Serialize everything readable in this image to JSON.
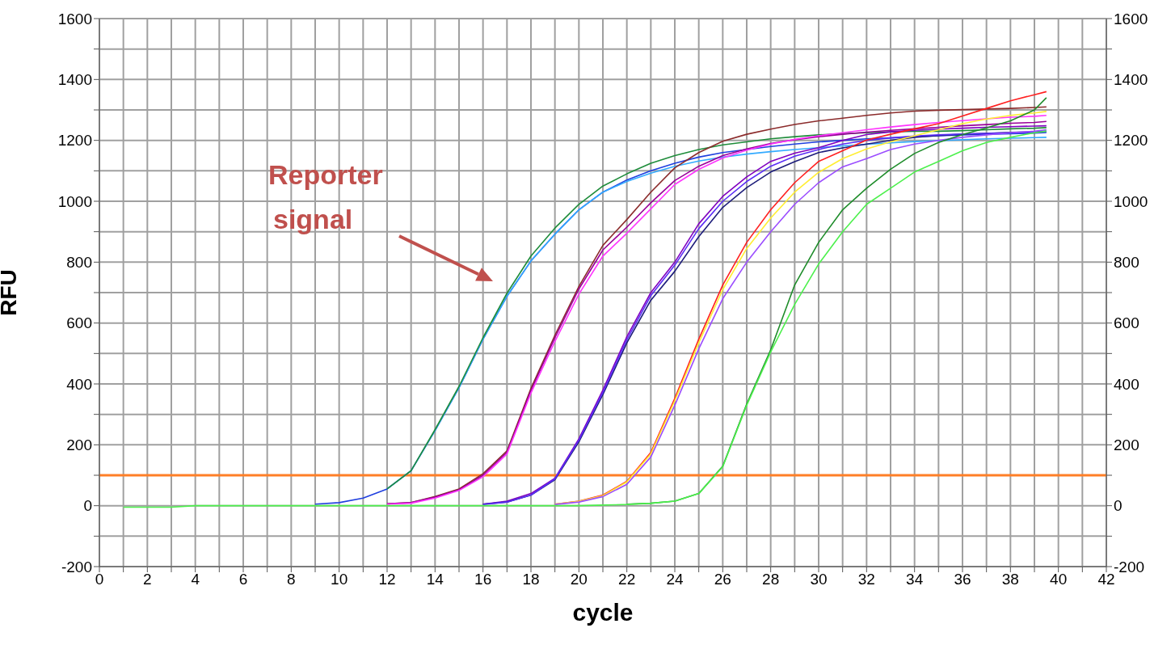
{
  "chart_data": {
    "type": "line",
    "xlabel": "cycle",
    "ylabel": "RFU",
    "grid": true,
    "legend": false,
    "x": [
      1,
      2,
      3,
      4,
      5,
      6,
      7,
      8,
      9,
      10,
      11,
      12,
      13,
      14,
      15,
      16,
      17,
      18,
      19,
      20,
      21,
      22,
      23,
      24,
      25,
      26,
      27,
      28,
      29,
      30,
      31,
      32,
      33,
      34,
      35,
      36,
      37,
      38,
      39,
      39.5
    ],
    "xlim": [
      0,
      42
    ],
    "xticks": [
      0,
      {
        "value": 1,
        "label": null
      },
      2,
      {
        "value": 3,
        "label": null
      },
      4,
      {
        "value": 5,
        "label": null
      },
      6,
      {
        "value": 7,
        "label": null
      },
      8,
      {
        "value": 9,
        "label": null
      },
      10,
      {
        "value": 11,
        "label": null
      },
      12,
      {
        "value": 13,
        "label": null
      },
      14,
      {
        "value": 15,
        "label": null
      },
      16,
      {
        "value": 17,
        "label": null
      },
      18,
      {
        "value": 19,
        "label": null
      },
      20,
      {
        "value": 21,
        "label": null
      },
      22,
      {
        "value": 23,
        "label": null
      },
      24,
      {
        "value": 25,
        "label": null
      },
      26,
      {
        "value": 27,
        "label": null
      },
      28,
      {
        "value": 29,
        "label": null
      },
      30,
      {
        "value": 31,
        "label": null
      },
      32,
      {
        "value": 33,
        "label": null
      },
      34,
      {
        "value": 35,
        "label": null
      },
      36,
      {
        "value": 37,
        "label": null
      },
      38,
      {
        "value": 39,
        "label": null
      },
      40,
      {
        "value": 41,
        "label": null
      },
      42
    ],
    "ylim": [
      -200,
      1600
    ],
    "yticks": [
      -200,
      {
        "value": -100,
        "label": null
      },
      0,
      {
        "value": 100,
        "label": null
      },
      200,
      {
        "value": 300,
        "label": null
      },
      400,
      {
        "value": 500,
        "label": null
      },
      600,
      {
        "value": 700,
        "label": null
      },
      800,
      {
        "value": 900,
        "label": null
      },
      1000,
      {
        "value": 1100,
        "label": null
      },
      1200,
      {
        "value": 1300,
        "label": null
      },
      1400,
      {
        "value": 1500,
        "label": null
      },
      1600
    ],
    "y2lim": [
      -200,
      1600
    ],
    "y2ticks": [
      -200,
      {
        "value": -100,
        "label": null
      },
      0,
      {
        "value": 100,
        "label": null
      },
      200,
      {
        "value": 300,
        "label": null
      },
      400,
      {
        "value": 500,
        "label": null
      },
      600,
      {
        "value": 700,
        "label": null
      },
      800,
      {
        "value": 900,
        "label": null
      },
      1000,
      {
        "value": 1100,
        "label": null
      },
      1200,
      {
        "value": 1300,
        "label": null
      },
      1400,
      {
        "value": 1500,
        "label": null
      },
      1600
    ],
    "ref_lines": [
      {
        "axis": "y",
        "value": 100,
        "color": "#ff7f27"
      }
    ],
    "annotations": [
      "Reporter signal"
    ],
    "series": [
      {
        "color": "#1f3fdf",
        "values": [
          null,
          null,
          null,
          null,
          null,
          null,
          null,
          null,
          5,
          10,
          25,
          55,
          115,
          247,
          388,
          547,
          688,
          804,
          892,
          972,
          1030,
          1070,
          1100,
          1125,
          1145,
          1160,
          1170,
          1180,
          1188,
          1195,
          1200,
          1205,
          1208,
          1212,
          1215,
          1218,
          1220,
          1222,
          1224,
          1226
        ]
      },
      {
        "color": "#33aaff",
        "values": [
          null,
          null,
          null,
          null,
          null,
          null,
          null,
          null,
          null,
          null,
          null,
          55,
          115,
          247,
          388,
          547,
          688,
          804,
          892,
          972,
          1030,
          1065,
          1092,
          1115,
          1132,
          1145,
          1155,
          1163,
          1170,
          1176,
          1182,
          1187,
          1192,
          1196,
          1199,
          1202,
          1205,
          1207,
          1209,
          1210
        ]
      },
      {
        "color": "#1e8c3a",
        "values": [
          null,
          null,
          null,
          null,
          null,
          null,
          null,
          null,
          null,
          null,
          null,
          55,
          115,
          250,
          392,
          552,
          698,
          820,
          912,
          990,
          1050,
          1090,
          1125,
          1150,
          1170,
          1185,
          1195,
          1205,
          1212,
          1218,
          1222,
          1225,
          1228,
          1230,
          1230,
          1232,
          1235,
          1238,
          1240,
          1242
        ]
      },
      {
        "color": "#8b2b2b",
        "values": [
          null,
          null,
          null,
          null,
          null,
          null,
          null,
          null,
          null,
          null,
          null,
          6,
          10,
          30,
          55,
          105,
          180,
          385,
          560,
          720,
          855,
          940,
          1030,
          1110,
          1160,
          1197,
          1220,
          1237,
          1252,
          1264,
          1273,
          1282,
          1290,
          1296,
          1299,
          1301,
          1303,
          1305,
          1308,
          1310
        ]
      },
      {
        "color": "#990099",
        "values": [
          null,
          null,
          null,
          null,
          null,
          null,
          null,
          null,
          null,
          null,
          null,
          6,
          10,
          28,
          52,
          100,
          175,
          378,
          552,
          712,
          840,
          915,
          995,
          1068,
          1115,
          1150,
          1172,
          1190,
          1202,
          1212,
          1220,
          1227,
          1233,
          1238,
          1243,
          1248,
          1252,
          1256,
          1259,
          1262
        ]
      },
      {
        "color": "#ff33ff",
        "values": [
          null,
          null,
          null,
          null,
          null,
          null,
          null,
          null,
          null,
          null,
          null,
          5,
          8,
          25,
          50,
          95,
          170,
          370,
          540,
          695,
          820,
          895,
          975,
          1055,
          1105,
          1142,
          1168,
          1188,
          1203,
          1215,
          1225,
          1235,
          1244,
          1252,
          1259,
          1265,
          1271,
          1276,
          1279,
          1282
        ]
      },
      {
        "color": "#8000c0",
        "values": [
          null,
          null,
          null,
          null,
          null,
          null,
          null,
          null,
          null,
          null,
          null,
          null,
          null,
          null,
          null,
          5,
          15,
          40,
          90,
          220,
          380,
          555,
          700,
          800,
          926,
          1016,
          1080,
          1131,
          1158,
          1176,
          1200,
          1219,
          1228,
          1233,
          1237,
          1240,
          1243,
          1245,
          1247,
          1248
        ]
      },
      {
        "color": "#1c1c7a",
        "values": [
          null,
          null,
          null,
          null,
          null,
          null,
          null,
          null,
          null,
          null,
          null,
          null,
          null,
          null,
          null,
          5,
          12,
          35,
          85,
          210,
          365,
          535,
          675,
          770,
          884,
          980,
          1045,
          1096,
          1130,
          1160,
          1175,
          1188,
          1200,
          1210,
          1216,
          1220,
          1223,
          1226,
          1228,
          1230
        ]
      },
      {
        "color": "#5a2df5",
        "values": [
          null,
          null,
          null,
          null,
          null,
          null,
          null,
          null,
          null,
          null,
          null,
          null,
          null,
          null,
          null,
          4,
          12,
          35,
          88,
          215,
          372,
          545,
          690,
          790,
          910,
          1000,
          1065,
          1115,
          1148,
          1170,
          1188,
          1200,
          1208,
          1214,
          1218,
          1221,
          1223,
          1225,
          1227,
          1228
        ]
      },
      {
        "color": "#ff2020",
        "values": [
          null,
          null,
          null,
          null,
          null,
          null,
          null,
          null,
          null,
          null,
          null,
          null,
          null,
          null,
          null,
          null,
          null,
          null,
          5,
          15,
          35,
          80,
          175,
          353,
          547,
          725,
          865,
          972,
          1061,
          1131,
          1166,
          1201,
          1220,
          1238,
          1255,
          1280,
          1305,
          1330,
          1350,
          1360
        ]
      },
      {
        "color": "#ffee33",
        "values": [
          null,
          null,
          null,
          null,
          null,
          null,
          null,
          null,
          null,
          null,
          null,
          null,
          null,
          null,
          null,
          null,
          null,
          null,
          5,
          14,
          33,
          78,
          170,
          345,
          535,
          710,
          845,
          945,
          1030,
          1095,
          1140,
          1172,
          1195,
          1215,
          1235,
          1255,
          1270,
          1282,
          1290,
          1295
        ]
      },
      {
        "color": "#9b4dff",
        "values": [
          null,
          null,
          null,
          null,
          null,
          null,
          null,
          null,
          null,
          null,
          null,
          null,
          null,
          null,
          null,
          null,
          null,
          null,
          4,
          12,
          30,
          70,
          160,
          330,
          515,
          680,
          800,
          900,
          990,
          1061,
          1113,
          1140,
          1170,
          1188,
          1200,
          1210,
          1218,
          1225,
          1230,
          1235
        ]
      },
      {
        "color": "#1e8c2a",
        "values": [
          null,
          null,
          null,
          null,
          null,
          null,
          null,
          null,
          null,
          null,
          null,
          null,
          null,
          null,
          null,
          null,
          null,
          null,
          null,
          null,
          null,
          5,
          8,
          15,
          40,
          130,
          334,
          512,
          725,
          865,
          972,
          1043,
          1105,
          1157,
          1193,
          1219,
          1241,
          1264,
          1300,
          1340
        ]
      },
      {
        "color": "#4df04d",
        "values": [
          -5,
          -5,
          -5,
          0,
          0,
          0,
          0,
          0,
          0,
          0,
          0,
          0,
          0,
          0,
          0,
          0,
          0,
          0,
          0,
          0,
          2,
          4,
          8,
          15,
          40,
          128,
          330,
          505,
          661,
          794,
          900,
          990,
          1043,
          1096,
          1131,
          1166,
          1193,
          1210,
          1225,
          1230
        ]
      }
    ]
  }
}
